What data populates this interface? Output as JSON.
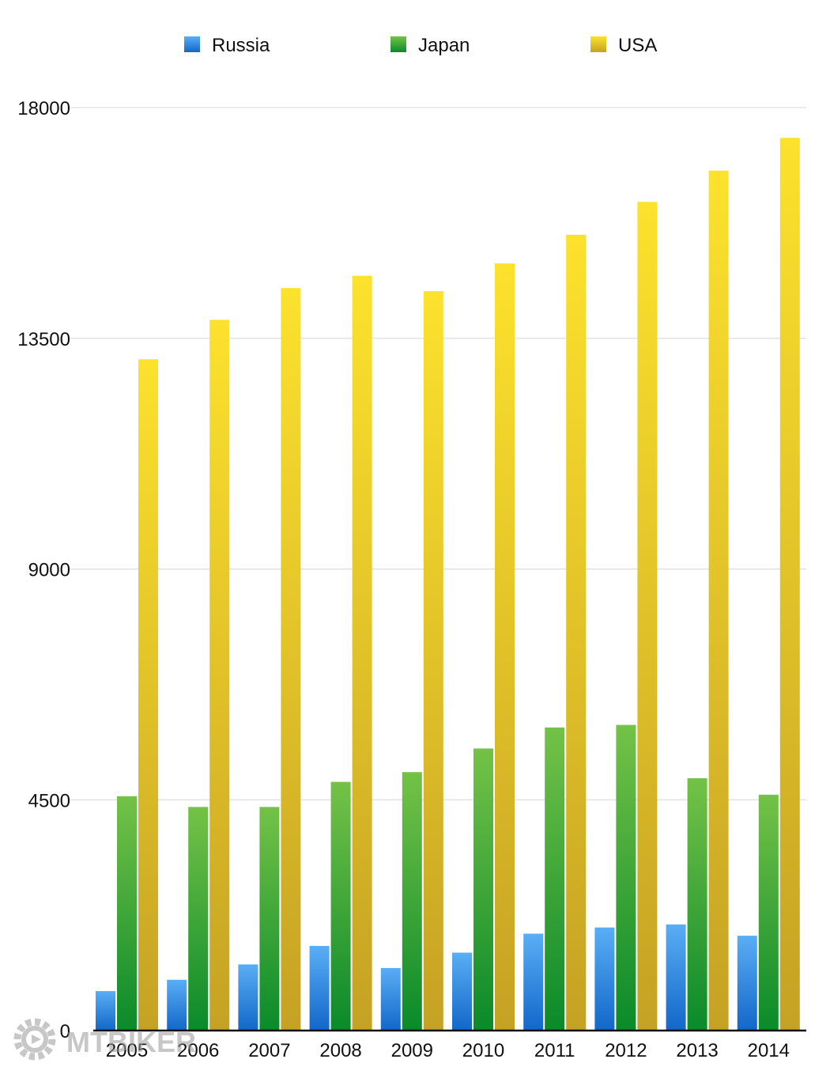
{
  "chart_data": {
    "type": "bar",
    "title": "",
    "xlabel": "",
    "ylabel": "",
    "ylim": [
      0,
      18000
    ],
    "yticks": [
      0,
      4500,
      9000,
      13500,
      18000
    ],
    "ytick_labels": [
      "0",
      "4500",
      "9000",
      "13500",
      "18000"
    ],
    "grid": true,
    "legend_position": "top-center",
    "categories": [
      "2005",
      "2006",
      "2007",
      "2008",
      "2009",
      "2010",
      "2011",
      "2012",
      "2013",
      "2014"
    ],
    "series": [
      {
        "name": "Russia",
        "color_top": "#5aaef5",
        "color_bottom": "#1267c9",
        "values": [
          770,
          990,
          1290,
          1650,
          1220,
          1520,
          1890,
          2010,
          2070,
          1850
        ]
      },
      {
        "name": "Japan",
        "color_top": "#74c247",
        "color_bottom": "#0a8a2a",
        "values": [
          4570,
          4360,
          4360,
          4850,
          5040,
          5500,
          5910,
          5960,
          4920,
          4600
        ]
      },
      {
        "name": "USA",
        "color_top": "#fce22d",
        "color_bottom": "#c5a224",
        "values": [
          13090,
          13860,
          14480,
          14720,
          14420,
          14960,
          15520,
          16160,
          16770,
          17410
        ]
      }
    ]
  },
  "watermark": {
    "text": "MTBIKER"
  }
}
